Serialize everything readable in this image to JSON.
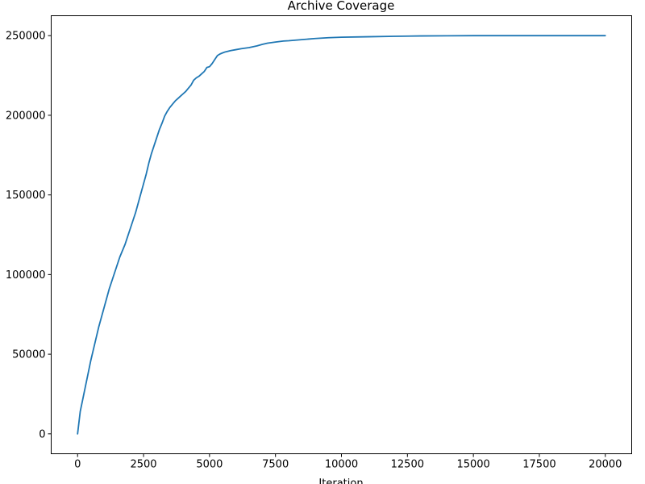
{
  "chart_data": {
    "type": "line",
    "title": "Archive Coverage",
    "xlabel": "Iteration",
    "ylabel": "",
    "xlim": [
      -1000,
      21000
    ],
    "ylim": [
      -12500,
      262500
    ],
    "xticks": [
      0,
      2500,
      5000,
      7500,
      10000,
      12500,
      15000,
      17500,
      20000
    ],
    "xtick_labels": [
      "0",
      "2500",
      "5000",
      "7500",
      "10000",
      "12500",
      "15000",
      "17500",
      "20000"
    ],
    "yticks": [
      0,
      50000,
      100000,
      150000,
      200000,
      250000
    ],
    "ytick_labels": [
      "0",
      "50000",
      "100000",
      "150000",
      "200000",
      "250000"
    ],
    "grid": false,
    "legend": "none",
    "line_color": "#1f77b4",
    "series": [
      {
        "x": [
          0,
          100,
          200,
          300,
          400,
          500,
          600,
          700,
          800,
          900,
          1000,
          1100,
          1200,
          1300,
          1400,
          1500,
          1600,
          1700,
          1800,
          1900,
          2000,
          2100,
          2200,
          2300,
          2400,
          2500,
          2600,
          2700,
          2800,
          2900,
          3000,
          3100,
          3200,
          3300,
          3400,
          3500,
          3600,
          3700,
          3800,
          3900,
          4000,
          4100,
          4200,
          4300,
          4400,
          4500,
          4600,
          4700,
          4800,
          4900,
          5000,
          5100,
          5200,
          5300,
          5400,
          5500,
          5600,
          5800,
          6000,
          6200,
          6500,
          6800,
          7000,
          7200,
          7500,
          7800,
          8000,
          8500,
          9000,
          9500,
          10000,
          11000,
          12000,
          13000,
          14000,
          15000,
          16000,
          17000,
          18000,
          19000,
          20000
        ],
        "y": [
          0,
          14000,
          22000,
          30000,
          38000,
          46000,
          53000,
          60000,
          67000,
          73000,
          79000,
          85000,
          91000,
          96000,
          101000,
          106000,
          111000,
          115000,
          119000,
          124000,
          129000,
          134000,
          139000,
          145000,
          151000,
          157000,
          163000,
          170000,
          176000,
          181000,
          186000,
          191000,
          195000,
          199500,
          202500,
          205000,
          207000,
          209000,
          210500,
          212000,
          213500,
          215000,
          217000,
          219000,
          222000,
          223500,
          224500,
          226000,
          227500,
          230000,
          230500,
          232500,
          235000,
          237500,
          238500,
          239200,
          239800,
          240600,
          241200,
          241800,
          242500,
          243600,
          244500,
          245300,
          246000,
          246600,
          246800,
          247500,
          248200,
          248700,
          249000,
          249300,
          249600,
          249800,
          249900,
          250000,
          250000,
          250000,
          250000,
          250000,
          250000
        ]
      }
    ]
  }
}
